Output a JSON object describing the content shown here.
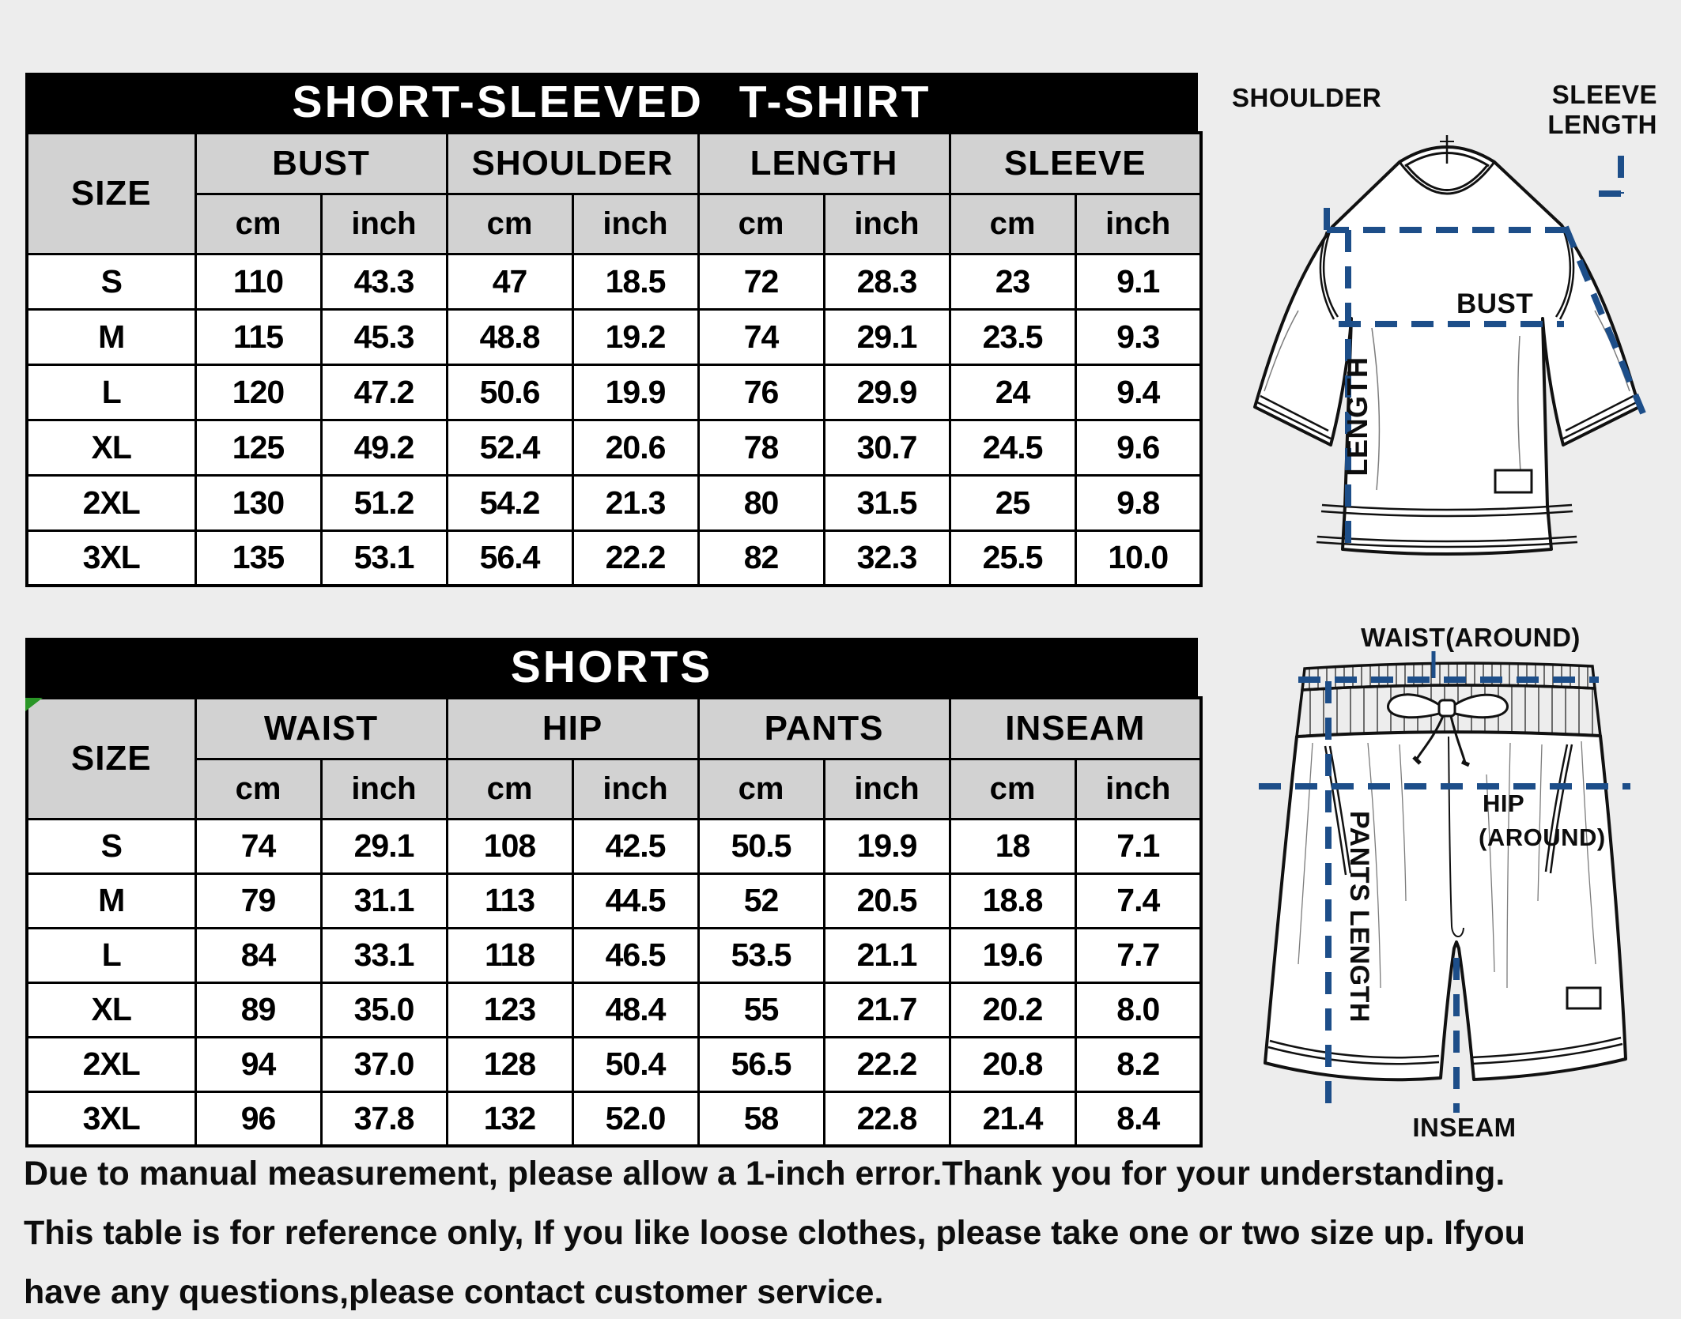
{
  "page": {
    "bg_color": "#ededed",
    "accent_dash_color": "#1d4e89",
    "header_cell_color": "#d2d2d2",
    "title_bar_color": "#000000",
    "corner_triangle_color": "#2a9627"
  },
  "tshirt_table": {
    "title": "SHORT-SLEEVED T-SHIRT",
    "size_header": "SIZE",
    "groups": [
      "BUST",
      "SHOULDER",
      "LENGTH",
      "SLEEVE"
    ],
    "units": [
      "cm",
      "inch"
    ],
    "rows": [
      {
        "size": "S",
        "values": [
          "110",
          "43.3",
          "47",
          "18.5",
          "72",
          "28.3",
          "23",
          "9.1"
        ]
      },
      {
        "size": "M",
        "values": [
          "115",
          "45.3",
          "48.8",
          "19.2",
          "74",
          "29.1",
          "23.5",
          "9.3"
        ]
      },
      {
        "size": "L",
        "values": [
          "120",
          "47.2",
          "50.6",
          "19.9",
          "76",
          "29.9",
          "24",
          "9.4"
        ]
      },
      {
        "size": "XL",
        "values": [
          "125",
          "49.2",
          "52.4",
          "20.6",
          "78",
          "30.7",
          "24.5",
          "9.6"
        ]
      },
      {
        "size": "2XL",
        "values": [
          "130",
          "51.2",
          "54.2",
          "21.3",
          "80",
          "31.5",
          "25",
          "9.8"
        ]
      },
      {
        "size": "3XL",
        "values": [
          "135",
          "53.1",
          "56.4",
          "22.2",
          "82",
          "32.3",
          "25.5",
          "10.0"
        ]
      }
    ]
  },
  "shorts_table": {
    "title": "SHORTS",
    "size_header": "SIZE",
    "groups": [
      "WAIST",
      "HIP",
      "PANTS",
      "INSEAM"
    ],
    "units": [
      "cm",
      "inch"
    ],
    "rows": [
      {
        "size": "S",
        "values": [
          "74",
          "29.1",
          "108",
          "42.5",
          "50.5",
          "19.9",
          "18",
          "7.1"
        ]
      },
      {
        "size": "M",
        "values": [
          "79",
          "31.1",
          "113",
          "44.5",
          "52",
          "20.5",
          "18.8",
          "7.4"
        ]
      },
      {
        "size": "L",
        "values": [
          "84",
          "33.1",
          "118",
          "46.5",
          "53.5",
          "21.1",
          "19.6",
          "7.7"
        ]
      },
      {
        "size": "XL",
        "values": [
          "89",
          "35.0",
          "123",
          "48.4",
          "55",
          "21.7",
          "20.2",
          "8.0"
        ]
      },
      {
        "size": "2XL",
        "values": [
          "94",
          "37.0",
          "128",
          "50.4",
          "56.5",
          "22.2",
          "20.8",
          "8.2"
        ]
      },
      {
        "size": "3XL",
        "values": [
          "96",
          "37.8",
          "132",
          "52.0",
          "58",
          "22.8",
          "21.4",
          "8.4"
        ]
      }
    ]
  },
  "tshirt_diagram": {
    "shoulder_label": "SHOULDER",
    "sleeve_length_line1": "SLEEVE",
    "sleeve_length_line2": "LENGTH",
    "bust_label": "BUST",
    "length_label": "LENGTH"
  },
  "shorts_diagram": {
    "waist_label": "WAIST(AROUND)",
    "hip_line1": "HIP",
    "hip_line2": "(AROUND)",
    "pants_length_label": "PANTS LENGTH",
    "inseam_label": "INSEAM"
  },
  "disclaimer": {
    "lines": [
      "Due to manual measurement, please allow a 1-inch error.Thank you for your understanding.",
      "This table is for reference only, If you like loose clothes, please take one or two size up. Ifyou",
      "have any questions,please contact customer service."
    ]
  }
}
